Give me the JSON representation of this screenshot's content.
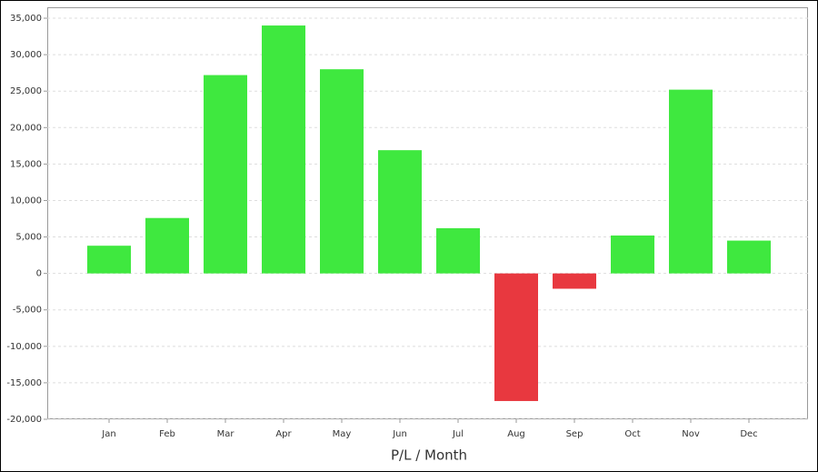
{
  "chart_data": {
    "type": "bar",
    "x_label": "P/L / Month",
    "categories": [
      "Jan",
      "Feb",
      "Mar",
      "Apr",
      "May",
      "Jun",
      "Jul",
      "Aug",
      "Sep",
      "Oct",
      "Nov",
      "Dec"
    ],
    "values": [
      3800,
      7600,
      27200,
      34000,
      28000,
      16900,
      6200,
      -17500,
      -2100,
      5200,
      25200,
      4500
    ],
    "positive_color": "#3fe83f",
    "negative_color": "#e8383f",
    "ylim": [
      -20000,
      36500
    ],
    "yticks": [
      {
        "value": -20000,
        "label": "-20,000"
      },
      {
        "value": -15000,
        "label": "-15,000"
      },
      {
        "value": -10000,
        "label": "-10,000"
      },
      {
        "value": -5000,
        "label": "-5,000"
      },
      0,
      {
        "value": 5000,
        "label": "5,000"
      },
      {
        "value": 10000,
        "label": "10,000"
      },
      {
        "value": 15000,
        "label": "15,000"
      },
      {
        "value": 20000,
        "label": "20,000"
      },
      {
        "value": 25000,
        "label": "25,000"
      },
      {
        "value": 30000,
        "label": "30,000"
      },
      {
        "value": 35000,
        "label": "35,000"
      }
    ],
    "grid": true
  }
}
